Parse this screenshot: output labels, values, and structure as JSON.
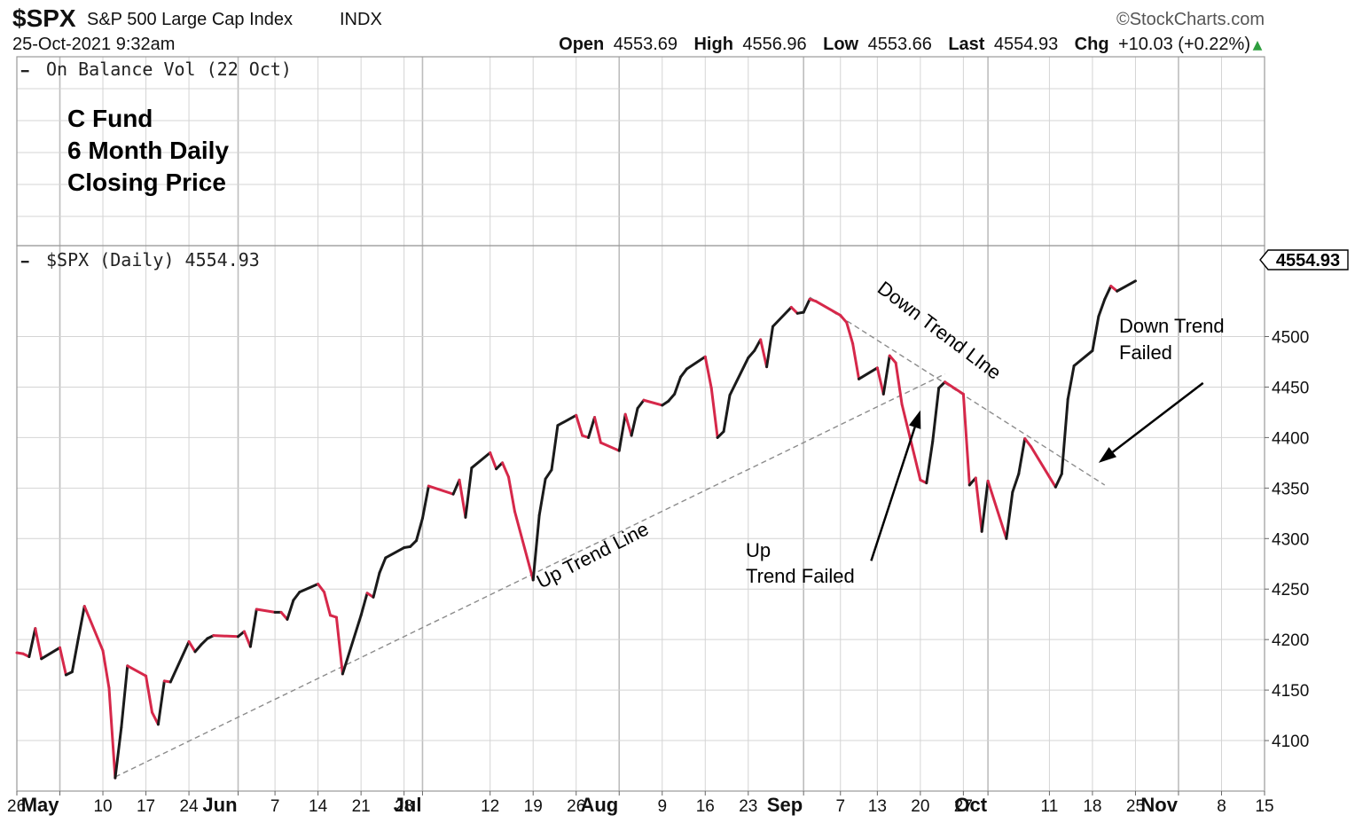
{
  "header": {
    "ticker": "$SPX",
    "name": "S&P 500 Large Cap Index",
    "exchange": "INDX",
    "logo": "©StockCharts.com",
    "datetime": "25-Oct-2021 9:32am",
    "open_label": "Open",
    "open_value": "4553.69",
    "high_label": "High",
    "high_value": "4556.96",
    "low_label": "Low",
    "low_value": "4553.66",
    "last_label": "Last",
    "last_value": "4554.93",
    "chg_label": "Chg",
    "chg_value": "+10.03 (+0.22%)",
    "chg_arrow": "▲"
  },
  "obv_panel": {
    "legend_marker": "━",
    "legend": "On Balance Vol (22 Oct)",
    "note_lines": [
      "C Fund",
      "6 Month Daily",
      "Closing Price"
    ]
  },
  "price_panel": {
    "legend_marker": "━",
    "legend": "$SPX (Daily) 4554.93",
    "last_label": "4554.93"
  },
  "annotations": {
    "up_trend_line": "Up Trend Line",
    "down_trend_line": "Down Trend LIne",
    "up_trend_failed": [
      "Up",
      "Trend Failed"
    ],
    "down_trend_failed": [
      "Down Trend",
      "Failed"
    ]
  },
  "colors": {
    "up": "#1a1a1a",
    "down": "#d6284a",
    "trend": "#8c8c8c"
  },
  "chart_data": {
    "type": "line",
    "title": "S&P 500 Large Cap Index",
    "xlabel": "",
    "ylabel": "",
    "ylim": [
      4050,
      4590
    ],
    "yticks": [
      4100,
      4150,
      4200,
      4250,
      4300,
      4350,
      4400,
      4450,
      4500
    ],
    "grid": true,
    "legend_placement": "top-left",
    "x_range": [
      "2021-04-26",
      "2021-11-15"
    ],
    "x_ticks": [
      {
        "date": "2021-04-26",
        "label": "26",
        "bold": false
      },
      {
        "date": "2021-05-03",
        "label": "May",
        "bold": true
      },
      {
        "date": "2021-05-10",
        "label": "10",
        "bold": false
      },
      {
        "date": "2021-05-17",
        "label": "17",
        "bold": false
      },
      {
        "date": "2021-05-24",
        "label": "24",
        "bold": false
      },
      {
        "date": "2021-06-01",
        "label": "Jun",
        "bold": true
      },
      {
        "date": "2021-06-07",
        "label": "7",
        "bold": false
      },
      {
        "date": "2021-06-14",
        "label": "14",
        "bold": false
      },
      {
        "date": "2021-06-21",
        "label": "21",
        "bold": false
      },
      {
        "date": "2021-06-28",
        "label": "28",
        "bold": false
      },
      {
        "date": "2021-07-01",
        "label": "Jul",
        "bold": true
      },
      {
        "date": "2021-07-12",
        "label": "12",
        "bold": false
      },
      {
        "date": "2021-07-19",
        "label": "19",
        "bold": false
      },
      {
        "date": "2021-07-26",
        "label": "26",
        "bold": false
      },
      {
        "date": "2021-08-02",
        "label": "Aug",
        "bold": true
      },
      {
        "date": "2021-08-09",
        "label": "9",
        "bold": false
      },
      {
        "date": "2021-08-16",
        "label": "16",
        "bold": false
      },
      {
        "date": "2021-08-23",
        "label": "23",
        "bold": false
      },
      {
        "date": "2021-09-01",
        "label": "Sep",
        "bold": true
      },
      {
        "date": "2021-09-07",
        "label": "7",
        "bold": false
      },
      {
        "date": "2021-09-13",
        "label": "13",
        "bold": false
      },
      {
        "date": "2021-09-20",
        "label": "20",
        "bold": false
      },
      {
        "date": "2021-09-27",
        "label": "27",
        "bold": false
      },
      {
        "date": "2021-10-01",
        "label": "Oct",
        "bold": true
      },
      {
        "date": "2021-10-11",
        "label": "11",
        "bold": false
      },
      {
        "date": "2021-10-18",
        "label": "18",
        "bold": false
      },
      {
        "date": "2021-10-25",
        "label": "25",
        "bold": false
      },
      {
        "date": "2021-11-01",
        "label": "Nov",
        "bold": true
      },
      {
        "date": "2021-11-08",
        "label": "8",
        "bold": false
      },
      {
        "date": "2021-11-15",
        "label": "15",
        "bold": false
      }
    ],
    "month_lines": [
      "2021-05-03",
      "2021-06-01",
      "2021-07-01",
      "2021-08-02",
      "2021-09-01",
      "2021-10-01",
      "2021-11-01"
    ],
    "series": [
      {
        "x": [
          "2021-04-26",
          "2021-04-27",
          "2021-04-28",
          "2021-04-29",
          "2021-04-30",
          "2021-05-03",
          "2021-05-04",
          "2021-05-05",
          "2021-05-06",
          "2021-05-07",
          "2021-05-10",
          "2021-05-11",
          "2021-05-12",
          "2021-05-13",
          "2021-05-14",
          "2021-05-17",
          "2021-05-18",
          "2021-05-19",
          "2021-05-20",
          "2021-05-21",
          "2021-05-24",
          "2021-05-25",
          "2021-05-26",
          "2021-05-27",
          "2021-05-28",
          "2021-06-01",
          "2021-06-02",
          "2021-06-03",
          "2021-06-04",
          "2021-06-07",
          "2021-06-08",
          "2021-06-09",
          "2021-06-10",
          "2021-06-11",
          "2021-06-14",
          "2021-06-15",
          "2021-06-16",
          "2021-06-17",
          "2021-06-18",
          "2021-06-21",
          "2021-06-22",
          "2021-06-23",
          "2021-06-24",
          "2021-06-25",
          "2021-06-28",
          "2021-06-29",
          "2021-06-30",
          "2021-07-01",
          "2021-07-02",
          "2021-07-06",
          "2021-07-07",
          "2021-07-08",
          "2021-07-09",
          "2021-07-12",
          "2021-07-13",
          "2021-07-14",
          "2021-07-15",
          "2021-07-16",
          "2021-07-19",
          "2021-07-20",
          "2021-07-21",
          "2021-07-22",
          "2021-07-23",
          "2021-07-26",
          "2021-07-27",
          "2021-07-28",
          "2021-07-29",
          "2021-07-30",
          "2021-08-02",
          "2021-08-03",
          "2021-08-04",
          "2021-08-05",
          "2021-08-06",
          "2021-08-09",
          "2021-08-10",
          "2021-08-11",
          "2021-08-12",
          "2021-08-13",
          "2021-08-16",
          "2021-08-17",
          "2021-08-18",
          "2021-08-19",
          "2021-08-20",
          "2021-08-23",
          "2021-08-24",
          "2021-08-25",
          "2021-08-26",
          "2021-08-27",
          "2021-08-30",
          "2021-08-31",
          "2021-09-01",
          "2021-09-02",
          "2021-09-03",
          "2021-09-07",
          "2021-09-08",
          "2021-09-09",
          "2021-09-10",
          "2021-09-13",
          "2021-09-14",
          "2021-09-15",
          "2021-09-16",
          "2021-09-17",
          "2021-09-20",
          "2021-09-21",
          "2021-09-22",
          "2021-09-23",
          "2021-09-24",
          "2021-09-27",
          "2021-09-28",
          "2021-09-29",
          "2021-09-30",
          "2021-10-01",
          "2021-10-04",
          "2021-10-05",
          "2021-10-06",
          "2021-10-07",
          "2021-10-08",
          "2021-10-11",
          "2021-10-12",
          "2021-10-13",
          "2021-10-14",
          "2021-10-15",
          "2021-10-18",
          "2021-10-19",
          "2021-10-20",
          "2021-10-21",
          "2021-10-22",
          "2021-10-25"
        ],
        "values": [
          4187,
          4186,
          4183,
          4211,
          4181,
          4192,
          4165,
          4168,
          4201,
          4233,
          4189,
          4152,
          4063,
          4113,
          4174,
          4164,
          4128,
          4116,
          4159,
          4158,
          4198,
          4188,
          4195,
          4201,
          4204,
          4203,
          4208,
          4193,
          4230,
          4227,
          4227,
          4220,
          4239,
          4247,
          4255,
          4247,
          4224,
          4222,
          4166,
          4224,
          4246,
          4242,
          4266,
          4281,
          4291,
          4292,
          4298,
          4320,
          4352,
          4344,
          4358,
          4321,
          4370,
          4385,
          4369,
          4375,
          4361,
          4327,
          4259,
          4323,
          4359,
          4368,
          4412,
          4422,
          4402,
          4400,
          4420,
          4395,
          4387,
          4423,
          4402,
          4429,
          4437,
          4432,
          4436,
          4443,
          4460,
          4468,
          4480,
          4449,
          4400,
          4406,
          4442,
          4479,
          4486,
          4497,
          4470,
          4510,
          4529,
          4523,
          4524,
          4537,
          4535,
          4521,
          4514,
          4493,
          4458,
          4469,
          4443,
          4481,
          4474,
          4433,
          4358,
          4355,
          4396,
          4449,
          4455,
          4443,
          4353,
          4360,
          4307,
          4357,
          4300,
          4346,
          4364,
          4399,
          4391,
          4361,
          4351,
          4364,
          4438,
          4471,
          4486,
          4520,
          4537,
          4550,
          4545,
          4555
        ]
      }
    ],
    "trend_lines": [
      {
        "name": "up",
        "from": {
          "x": "2021-05-12",
          "y": 4064
        },
        "to": {
          "x": "2021-09-24",
          "y": 4463
        }
      },
      {
        "name": "down",
        "from": {
          "x": "2021-09-02",
          "y": 4539
        },
        "to": {
          "x": "2021-10-20",
          "y": 4353
        }
      }
    ],
    "arrows": [
      {
        "name": "up-trend-failed",
        "from": {
          "x": "2021-09-12",
          "y": 4278
        },
        "to": {
          "x": "2021-09-20",
          "y": 4427
        }
      },
      {
        "name": "down-trend-failed",
        "from": {
          "x": "2021-11-05",
          "y": 4454
        },
        "to": {
          "x": "2021-10-19",
          "y": 4375
        }
      }
    ]
  }
}
